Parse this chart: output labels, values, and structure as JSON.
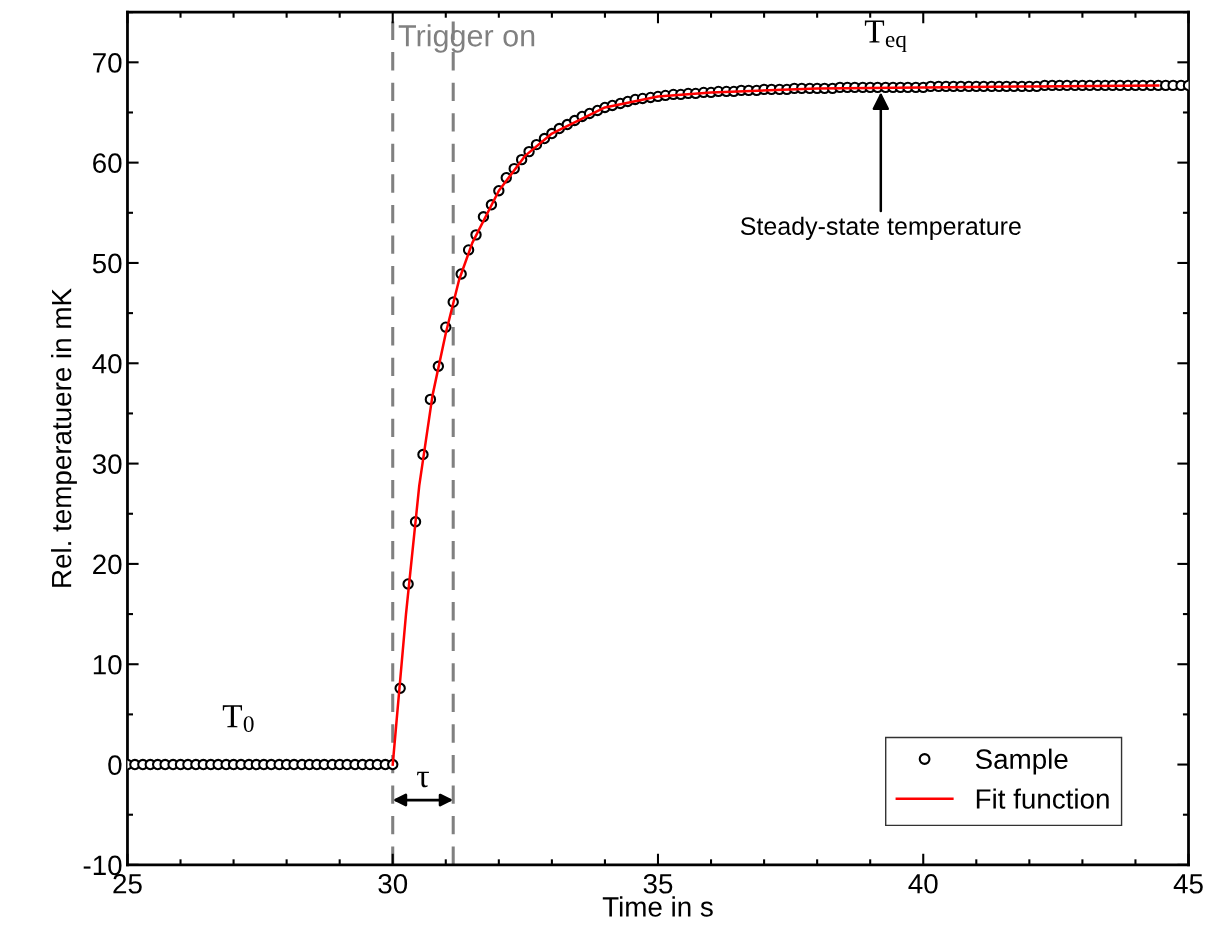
{
  "chart_data": {
    "type": "scatter",
    "xlabel": "Time in s",
    "ylabel": "Rel. temperatuere in mK",
    "xlim": [
      25,
      45
    ],
    "xticks": [
      25,
      30,
      35,
      40,
      45
    ],
    "ylim": [
      -10,
      75
    ],
    "yticks": [
      -10,
      0,
      10,
      20,
      30,
      40,
      50,
      60,
      70
    ],
    "grid": false,
    "legend": "bottom right",
    "marker": "circle",
    "series": [
      {
        "name": "Sample",
        "color": "#000000",
        "x": [
          25,
          25.14,
          25.29,
          25.43,
          25.57,
          25.71,
          25.86,
          26,
          26.14,
          26.29,
          26.43,
          26.57,
          26.71,
          26.86,
          27,
          27.14,
          27.29,
          27.43,
          27.57,
          27.71,
          27.86,
          28,
          28.14,
          28.29,
          28.43,
          28.57,
          28.71,
          28.86,
          29,
          29.14,
          29.29,
          29.43,
          29.57,
          29.71,
          29.86,
          30,
          30.14,
          30.29,
          30.43,
          30.57,
          30.71,
          30.86,
          31,
          31.14,
          31.29,
          31.43,
          31.57,
          31.71,
          31.86,
          32,
          32.14,
          32.29,
          32.43,
          32.57,
          32.71,
          32.86,
          33,
          33.14,
          33.29,
          33.43,
          33.57,
          33.71,
          33.86,
          34,
          34.14,
          34.29,
          34.43,
          34.57,
          34.71,
          34.86,
          35,
          35.14,
          35.29,
          35.43,
          35.57,
          35.71,
          35.86,
          36,
          36.14,
          36.29,
          36.43,
          36.57,
          36.71,
          36.86,
          37,
          37.14,
          37.29,
          37.43,
          37.57,
          37.71,
          37.86,
          38,
          38.14,
          38.29,
          38.43,
          38.57,
          38.71,
          38.86,
          39,
          39.14,
          39.29,
          39.43,
          39.57,
          39.71,
          39.86,
          40,
          40.14,
          40.29,
          40.43,
          40.57,
          40.71,
          40.86,
          41,
          41.14,
          41.29,
          41.43,
          41.57,
          41.71,
          41.86,
          42,
          42.14,
          42.29,
          42.43,
          42.57,
          42.71,
          42.86,
          43,
          43.14,
          43.29,
          43.43,
          43.57,
          43.71,
          43.86,
          44,
          44.14,
          44.29,
          44.43,
          44.57,
          44.71,
          44.86,
          45
        ],
        "values": [
          0,
          0,
          0,
          0,
          0,
          0,
          0,
          0,
          0,
          0,
          0,
          0,
          0,
          0,
          0,
          0,
          0,
          0,
          0,
          0,
          0,
          0,
          0,
          0,
          0,
          0,
          0,
          0,
          0,
          0,
          0,
          0,
          0,
          0,
          0,
          0,
          7.6,
          18.0,
          24.2,
          30.9,
          36.4,
          39.7,
          43.6,
          46.1,
          48.9,
          51.3,
          52.8,
          54.6,
          55.8,
          57.2,
          58.5,
          59.4,
          60.3,
          61.1,
          61.8,
          62.4,
          62.9,
          63.4,
          63.8,
          64.2,
          64.6,
          64.9,
          65.2,
          65.5,
          65.7,
          65.9,
          66.1,
          66.3,
          66.4,
          66.5,
          66.6,
          66.7,
          66.8,
          66.8,
          66.9,
          66.9,
          67.0,
          67.0,
          67.1,
          67.1,
          67.1,
          67.2,
          67.2,
          67.2,
          67.3,
          67.3,
          67.3,
          67.3,
          67.4,
          67.4,
          67.4,
          67.4,
          67.4,
          67.4,
          67.5,
          67.5,
          67.5,
          67.5,
          67.5,
          67.5,
          67.5,
          67.5,
          67.5,
          67.5,
          67.5,
          67.5,
          67.6,
          67.6,
          67.6,
          67.6,
          67.6,
          67.6,
          67.6,
          67.6,
          67.6,
          67.6,
          67.6,
          67.6,
          67.6,
          67.6,
          67.6,
          67.7,
          67.7,
          67.7,
          67.7,
          67.7,
          67.7,
          67.7,
          67.7,
          67.7,
          67.7,
          67.7,
          67.7,
          67.7,
          67.7,
          67.7,
          67.7,
          67.7,
          67.7,
          67.7,
          67.7
        ]
      },
      {
        "name": "Fit function",
        "type": "line",
        "color": "#ff0000",
        "marker": "none",
        "line_style": "solid",
        "x": [
          30,
          30.25,
          30.5,
          30.75,
          31,
          31.25,
          31.5,
          32,
          32.5,
          33,
          34,
          35,
          36,
          38,
          40,
          42,
          44.43
        ],
        "values": [
          0,
          15.0,
          27.8,
          36.8,
          43.0,
          48.3,
          52.0,
          57.2,
          60.7,
          62.9,
          65.5,
          66.6,
          67.0,
          67.4,
          67.5,
          67.6,
          67.7
        ]
      }
    ],
    "ref_lines": [
      {
        "axis": "x",
        "value": 30,
        "label": "Trigger on",
        "color": "#808080",
        "line_style": "dashed"
      },
      {
        "axis": "x",
        "value": 31.14,
        "label": null,
        "color": "#808080",
        "line_style": "dashed"
      }
    ],
    "annotations": [
      "T$_{0}$",
      "T$_{eq}$",
      {
        "text": "Steady-state temperature",
        "x": 39.2,
        "y": 67.3
      },
      "τ"
    ]
  }
}
